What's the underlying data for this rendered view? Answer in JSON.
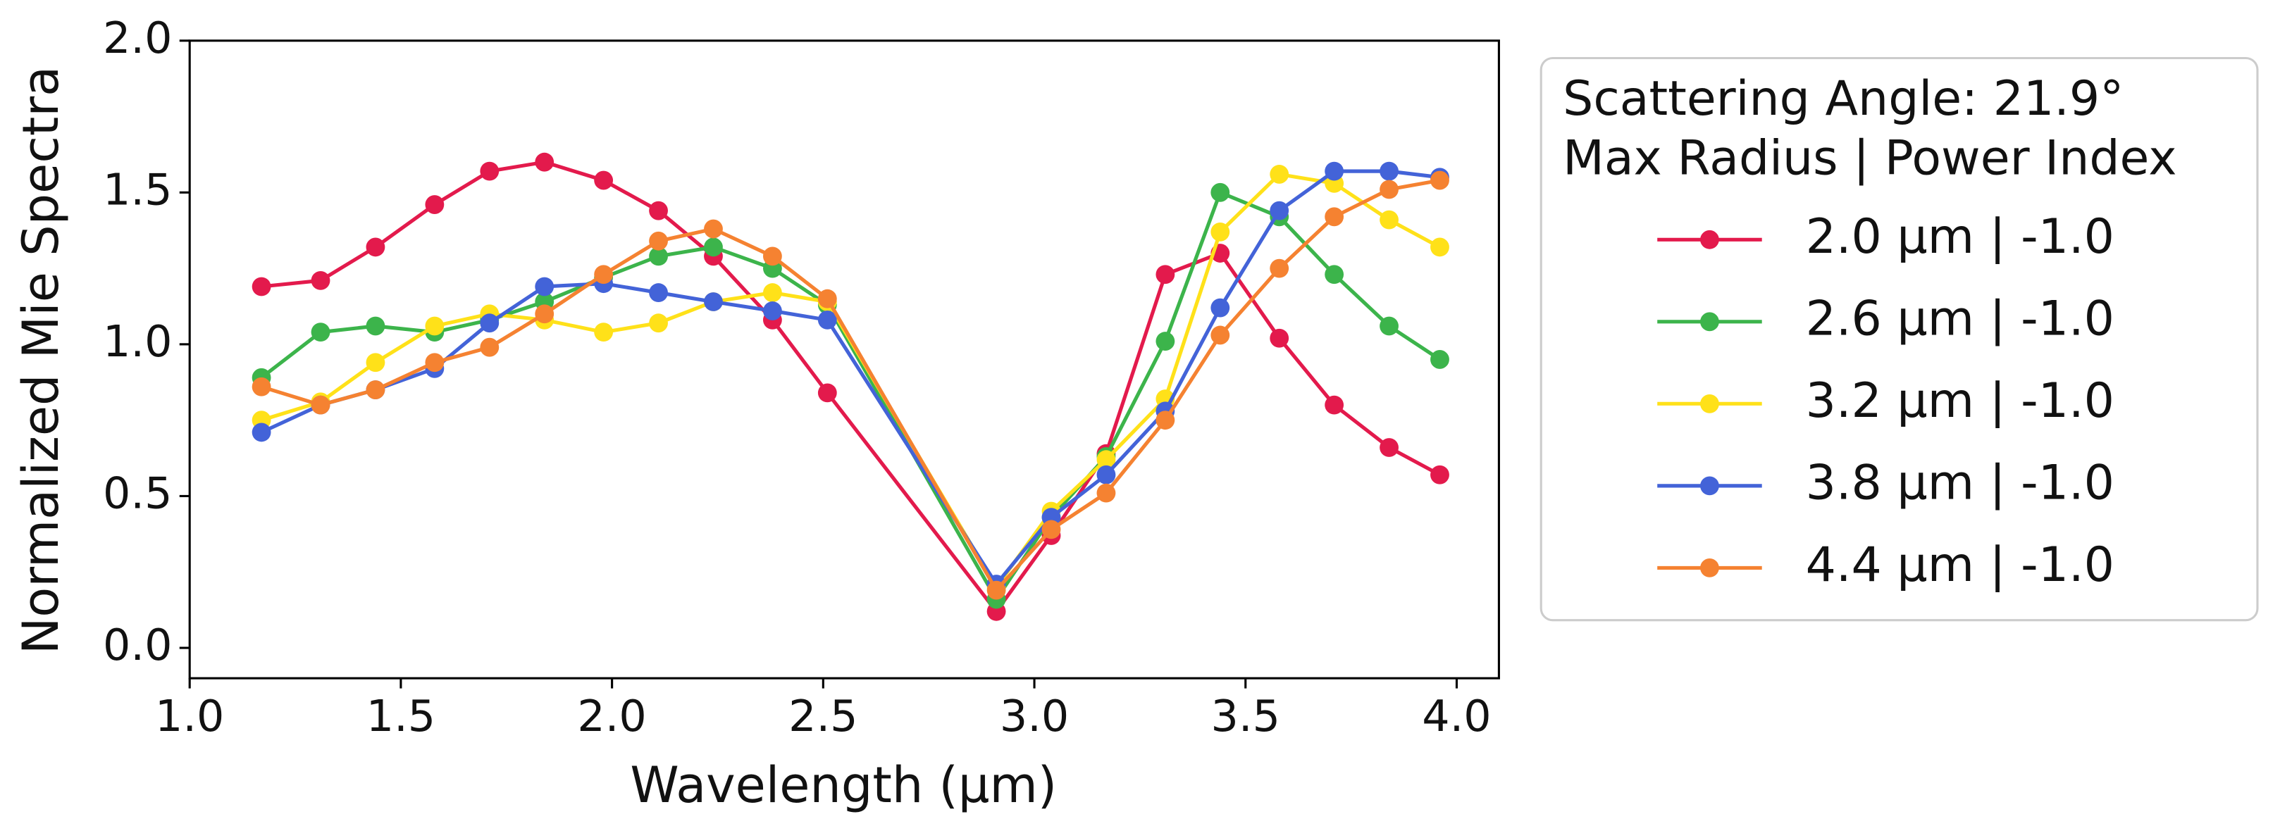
{
  "chart_data": {
    "type": "line",
    "xlabel": "Wavelength (μm)",
    "ylabel": "Normalized Mie Spectra",
    "legend_title": [
      "Scattering Angle: 21.9°",
      "Max Radius | Power Index"
    ],
    "x": [
      1.17,
      1.31,
      1.44,
      1.58,
      1.71,
      1.84,
      1.98,
      2.11,
      2.24,
      2.38,
      2.51,
      2.91,
      3.04,
      3.17,
      3.31,
      3.44,
      3.58,
      3.71,
      3.84,
      3.96
    ],
    "series": [
      {
        "name": "2.0 μm | -1.0",
        "color": "#e31a4c",
        "values": [
          1.19,
          1.21,
          1.32,
          1.46,
          1.57,
          1.6,
          1.54,
          1.44,
          1.29,
          1.08,
          0.84,
          0.12,
          0.37,
          0.64,
          1.23,
          1.3,
          1.02,
          0.8,
          0.66,
          0.57
        ]
      },
      {
        "name": "2.6 μm | -1.0",
        "color": "#3cb44b",
        "values": [
          0.89,
          1.04,
          1.06,
          1.04,
          1.08,
          1.14,
          1.22,
          1.29,
          1.32,
          1.25,
          1.13,
          0.16,
          0.43,
          0.63,
          1.01,
          1.5,
          1.42,
          1.23,
          1.06,
          0.95
        ]
      },
      {
        "name": "3.2 μm | -1.0",
        "color": "#ffe119",
        "values": [
          0.75,
          0.81,
          0.94,
          1.06,
          1.1,
          1.08,
          1.04,
          1.07,
          1.14,
          1.17,
          1.14,
          0.2,
          0.45,
          0.62,
          0.82,
          1.37,
          1.56,
          1.53,
          1.41,
          1.32
        ]
      },
      {
        "name": "3.8 μm | -1.0",
        "color": "#4363d8",
        "values": [
          0.71,
          0.8,
          0.85,
          0.92,
          1.07,
          1.19,
          1.2,
          1.17,
          1.14,
          1.11,
          1.08,
          0.21,
          0.43,
          0.57,
          0.78,
          1.12,
          1.44,
          1.57,
          1.57,
          1.55
        ]
      },
      {
        "name": "4.4 μm | -1.0",
        "color": "#f58231",
        "values": [
          0.86,
          0.8,
          0.85,
          0.94,
          0.99,
          1.1,
          1.23,
          1.34,
          1.38,
          1.29,
          1.15,
          0.19,
          0.39,
          0.51,
          0.75,
          1.03,
          1.25,
          1.42,
          1.51,
          1.54
        ]
      }
    ],
    "xlim": [
      1.0,
      4.1
    ],
    "xticks": [
      {
        "value": 1,
        "label": "1.0"
      },
      1.5,
      {
        "value": 2,
        "label": "2.0"
      },
      2.5,
      {
        "value": 3,
        "label": "3.0"
      },
      3.5,
      {
        "value": 4,
        "label": "4.0"
      }
    ],
    "ylim": [
      -0.1,
      2.0
    ],
    "yticks": [
      {
        "value": 0,
        "label": "0.0"
      },
      0.5,
      {
        "value": 1,
        "label": "1.0"
      },
      1.5,
      {
        "value": 2,
        "label": "2.0"
      }
    ],
    "grid": false
  }
}
